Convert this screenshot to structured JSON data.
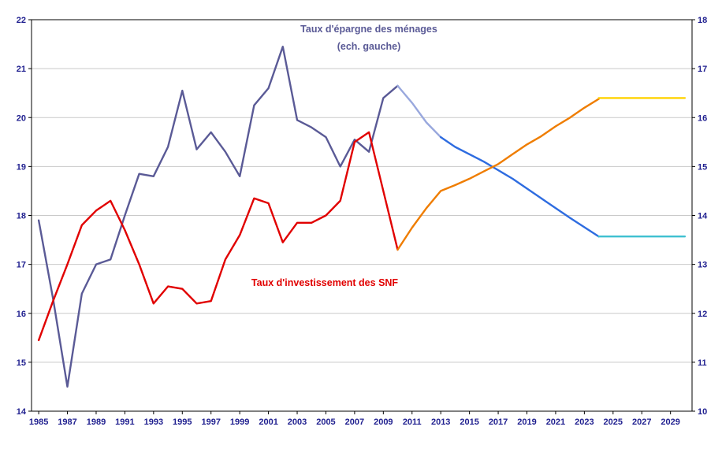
{
  "window": {
    "background": "#ffffff"
  },
  "chart_data": {
    "type": "line",
    "labels": {
      "epargne": {
        "line1": "Taux d'épargne des ménages",
        "line2": "(ech. gauche)",
        "color": "#5a5a96"
      },
      "investissement": {
        "text": "Taux d'investissement des SNF",
        "color": "#e10000"
      }
    },
    "axes": {
      "x": {
        "min": 1984.5,
        "max": 2030.5,
        "ticks": [
          1985,
          1987,
          1989,
          1991,
          1993,
          1995,
          1997,
          1999,
          2001,
          2003,
          2005,
          2007,
          2009,
          2011,
          2013,
          2015,
          2017,
          2019,
          2021,
          2023,
          2025,
          2027,
          2029
        ]
      },
      "left": {
        "min": 14,
        "max": 22,
        "ticks": [
          14,
          15,
          16,
          17,
          18,
          19,
          20,
          21,
          22
        ]
      },
      "right": {
        "min": 10,
        "max": 18,
        "ticks": [
          10,
          11,
          12,
          13,
          14,
          15,
          16,
          17,
          18
        ]
      }
    },
    "grid": {
      "color": "#c9c9c9",
      "horizontal": true,
      "vertical": false
    },
    "tick_label_color": "#1f1f8f",
    "frame_color": "#000000",
    "series": [
      {
        "name": "epargne-menages-historique",
        "axis": "left",
        "color": "#5a5a96",
        "width": 2.4,
        "points": [
          [
            1985,
            17.9
          ],
          [
            1986,
            16.3
          ],
          [
            1987,
            14.5
          ],
          [
            1988,
            16.4
          ],
          [
            1989,
            17.0
          ],
          [
            1990,
            17.1
          ],
          [
            1991,
            18.0
          ],
          [
            1992,
            18.85
          ],
          [
            1993,
            18.8
          ],
          [
            1994,
            19.4
          ],
          [
            1995,
            20.55
          ],
          [
            1996,
            19.35
          ],
          [
            1997,
            19.7
          ],
          [
            1998,
            19.3
          ],
          [
            1999,
            18.8
          ],
          [
            2000,
            20.25
          ],
          [
            2001,
            20.6
          ],
          [
            2002,
            21.45
          ],
          [
            2003,
            19.95
          ],
          [
            2004,
            19.8
          ],
          [
            2005,
            19.6
          ],
          [
            2006,
            19.0
          ],
          [
            2007,
            19.55
          ],
          [
            2008,
            19.3
          ],
          [
            2009,
            20.4
          ],
          [
            2010,
            20.65
          ]
        ]
      },
      {
        "name": "epargne-menages-transition",
        "axis": "left",
        "color": "#99a8dd",
        "width": 2.4,
        "points": [
          [
            2010,
            20.65
          ],
          [
            2011,
            20.3
          ],
          [
            2012,
            19.9
          ],
          [
            2013,
            19.6
          ]
        ]
      },
      {
        "name": "epargne-menages-projection",
        "axis": "left",
        "color": "#2e6ce0",
        "width": 2.4,
        "points": [
          [
            2013,
            19.6
          ],
          [
            2014,
            19.4
          ],
          [
            2016,
            19.1
          ],
          [
            2018,
            18.75
          ],
          [
            2020,
            18.35
          ],
          [
            2022,
            17.95
          ],
          [
            2024,
            17.57
          ]
        ]
      },
      {
        "name": "epargne-menages-long-terme",
        "axis": "left",
        "color": "#3fc0d0",
        "width": 2.4,
        "points": [
          [
            2024,
            17.57
          ],
          [
            2030,
            17.57
          ]
        ]
      },
      {
        "name": "investissement-snf-historique",
        "axis": "right",
        "color": "#e10000",
        "width": 2.4,
        "points": [
          [
            1985,
            11.45
          ],
          [
            1986,
            12.25
          ],
          [
            1987,
            13.0
          ],
          [
            1988,
            13.8
          ],
          [
            1989,
            14.1
          ],
          [
            1990,
            14.3
          ],
          [
            1991,
            13.7
          ],
          [
            1992,
            13.0
          ],
          [
            1993,
            12.2
          ],
          [
            1994,
            12.55
          ],
          [
            1995,
            12.5
          ],
          [
            1996,
            12.2
          ],
          [
            1997,
            12.25
          ],
          [
            1998,
            13.1
          ],
          [
            1999,
            13.6
          ],
          [
            2000,
            14.35
          ],
          [
            2001,
            14.25
          ],
          [
            2002,
            13.45
          ],
          [
            2003,
            13.85
          ],
          [
            2004,
            13.85
          ],
          [
            2005,
            14.0
          ],
          [
            2006,
            14.3
          ],
          [
            2007,
            15.5
          ],
          [
            2008,
            15.7
          ],
          [
            2009,
            14.5
          ],
          [
            2010,
            13.3
          ]
        ]
      },
      {
        "name": "investissement-snf-projection",
        "axis": "right",
        "color": "#ef7d00",
        "width": 2.4,
        "points": [
          [
            2010,
            13.3
          ],
          [
            2011,
            13.75
          ],
          [
            2012,
            14.15
          ],
          [
            2013,
            14.5
          ],
          [
            2014,
            14.62
          ],
          [
            2015,
            14.75
          ],
          [
            2016,
            14.9
          ],
          [
            2017,
            15.05
          ],
          [
            2018,
            15.25
          ],
          [
            2019,
            15.45
          ],
          [
            2020,
            15.62
          ],
          [
            2021,
            15.82
          ],
          [
            2022,
            16.0
          ],
          [
            2023,
            16.2
          ],
          [
            2024,
            16.38
          ]
        ]
      },
      {
        "name": "investissement-snf-long-terme",
        "axis": "right",
        "color": "#ffd200",
        "width": 2.4,
        "points": [
          [
            2024,
            16.4
          ],
          [
            2030,
            16.4
          ]
        ]
      }
    ]
  }
}
